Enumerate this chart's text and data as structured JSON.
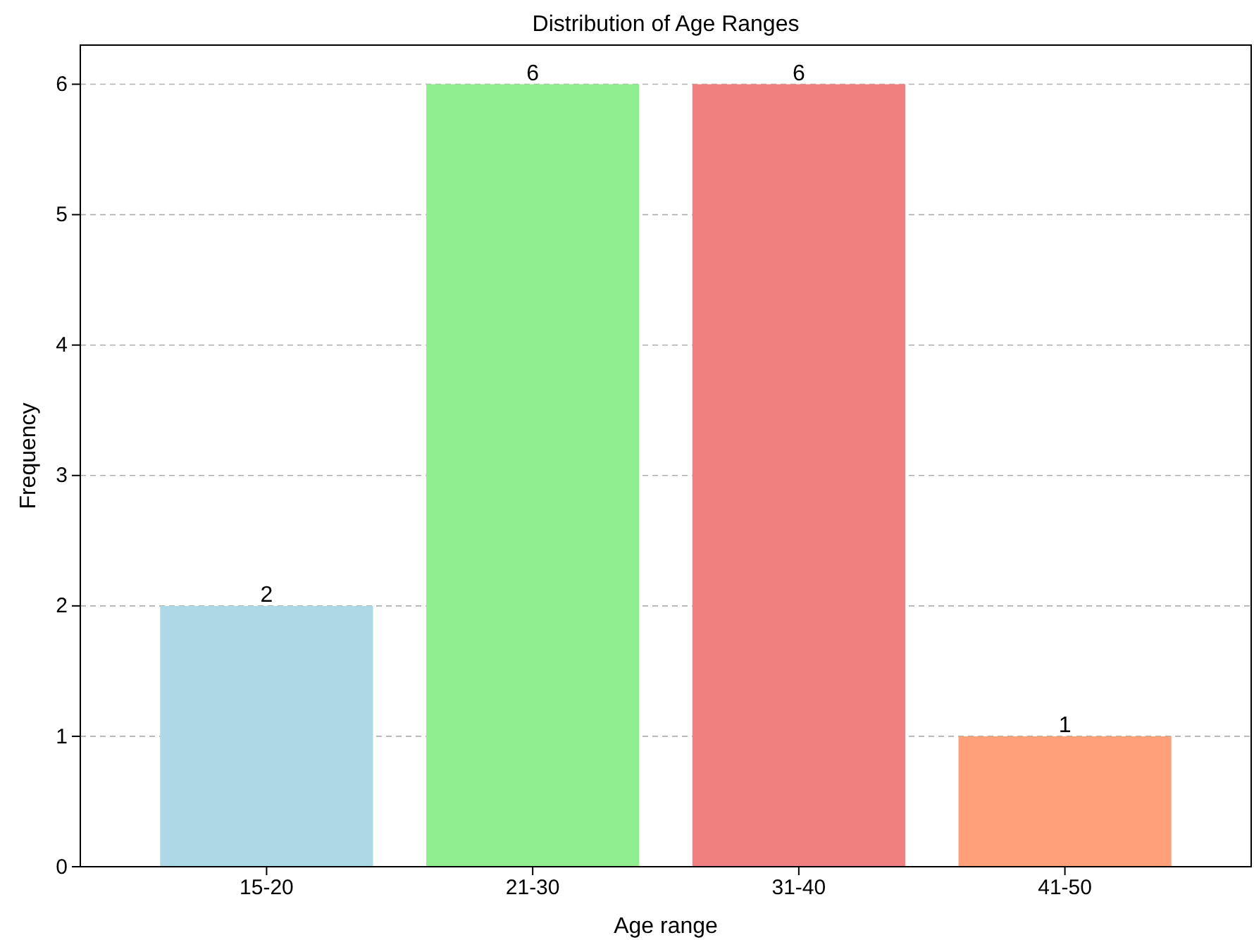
{
  "chart_data": {
    "type": "bar",
    "title": "Distribution of Age Ranges",
    "xlabel": "Age range",
    "ylabel": "Frequency",
    "categories": [
      "15-20",
      "21-30",
      "31-40",
      "41-50"
    ],
    "values": [
      2,
      6,
      6,
      1
    ],
    "colors": [
      "#add8e6",
      "#90ee90",
      "#f08080",
      "#ffa07a"
    ],
    "ylim": [
      0,
      6.3
    ],
    "yticks": [
      0,
      1,
      2,
      3,
      4,
      5,
      6
    ],
    "grid": "y",
    "data_labels": true
  }
}
